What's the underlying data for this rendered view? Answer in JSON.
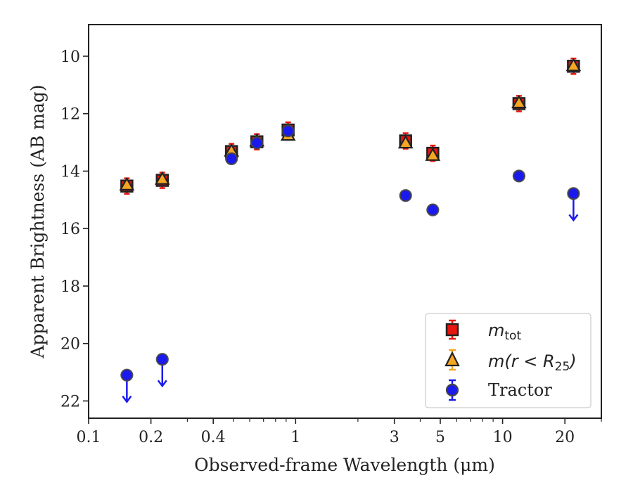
{
  "chart_data": {
    "type": "scatter",
    "xlabel": "Observed-frame Wavelength (μm)",
    "ylabel": "Apparent Brightness (AB mag)",
    "xscale": "log",
    "xlim": [
      0.1,
      30
    ],
    "ylim": [
      22.6,
      8.9
    ],
    "y_inverted": true,
    "x_major_ticks": [
      {
        "value": 0.1,
        "label": "0.1"
      },
      {
        "value": 0.2,
        "label": "0.2"
      },
      {
        "value": 0.4,
        "label": "0.4"
      },
      {
        "value": 1,
        "label": "1"
      },
      {
        "value": 3,
        "label": "3"
      },
      {
        "value": 5,
        "label": "5"
      },
      {
        "value": 10,
        "label": "10"
      },
      {
        "value": 20,
        "label": "20"
      }
    ],
    "x_minor_ticks": [
      0.3,
      0.5,
      0.6,
      0.7,
      0.8,
      0.9,
      2,
      4,
      6,
      7,
      8,
      9,
      30
    ],
    "y_ticks": [
      {
        "value": 10,
        "label": "10"
      },
      {
        "value": 12,
        "label": "12"
      },
      {
        "value": 14,
        "label": "14"
      },
      {
        "value": 16,
        "label": "16"
      },
      {
        "value": 18,
        "label": "18"
      },
      {
        "value": 20,
        "label": "20"
      },
      {
        "value": 22,
        "label": "22"
      }
    ],
    "grid": false,
    "legend_position": "lower-right",
    "series": [
      {
        "key": "tot",
        "marker": "square",
        "color": "#e8140f",
        "points": [
          {
            "x": 0.153,
            "y": 14.52
          },
          {
            "x": 0.227,
            "y": 14.32
          },
          {
            "x": 0.49,
            "y": 13.32
          },
          {
            "x": 0.65,
            "y": 12.98
          },
          {
            "x": 0.92,
            "y": 12.57
          },
          {
            "x": 3.4,
            "y": 12.95
          },
          {
            "x": 4.6,
            "y": 13.38
          },
          {
            "x": 12.0,
            "y": 11.65
          },
          {
            "x": 22.0,
            "y": 10.35
          }
        ]
      },
      {
        "key": "r25",
        "marker": "triangle",
        "color": "#f5a623",
        "points": [
          {
            "x": 0.153,
            "y": 14.48
          },
          {
            "x": 0.227,
            "y": 14.28
          },
          {
            "x": 0.49,
            "y": 13.3
          },
          {
            "x": 0.65,
            "y": 12.95
          },
          {
            "x": 0.92,
            "y": 12.75
          },
          {
            "x": 3.4,
            "y": 13.02
          },
          {
            "x": 4.6,
            "y": 13.45
          },
          {
            "x": 12.0,
            "y": 11.62
          },
          {
            "x": 22.0,
            "y": 10.33
          }
        ]
      },
      {
        "key": "tractor",
        "name": "Tractor",
        "marker": "circle",
        "color": "#1a1aee",
        "points": [
          {
            "x": 0.153,
            "y": 21.1,
            "upper_limit": true
          },
          {
            "x": 0.227,
            "y": 20.55,
            "upper_limit": true
          },
          {
            "x": 0.49,
            "y": 13.57
          },
          {
            "x": 0.65,
            "y": 13.02
          },
          {
            "x": 0.92,
            "y": 12.6
          },
          {
            "x": 3.4,
            "y": 14.85
          },
          {
            "x": 4.6,
            "y": 15.35
          },
          {
            "x": 12.0,
            "y": 14.17
          },
          {
            "x": 22.0,
            "y": 14.78,
            "upper_limit": true
          }
        ]
      }
    ],
    "legend": {
      "tot": {
        "base": "m",
        "sub": "tot"
      },
      "r25": {
        "pre": "m(r < R",
        "sub": "25",
        "post": ")"
      },
      "tractor": {
        "label": "Tractor"
      }
    }
  }
}
